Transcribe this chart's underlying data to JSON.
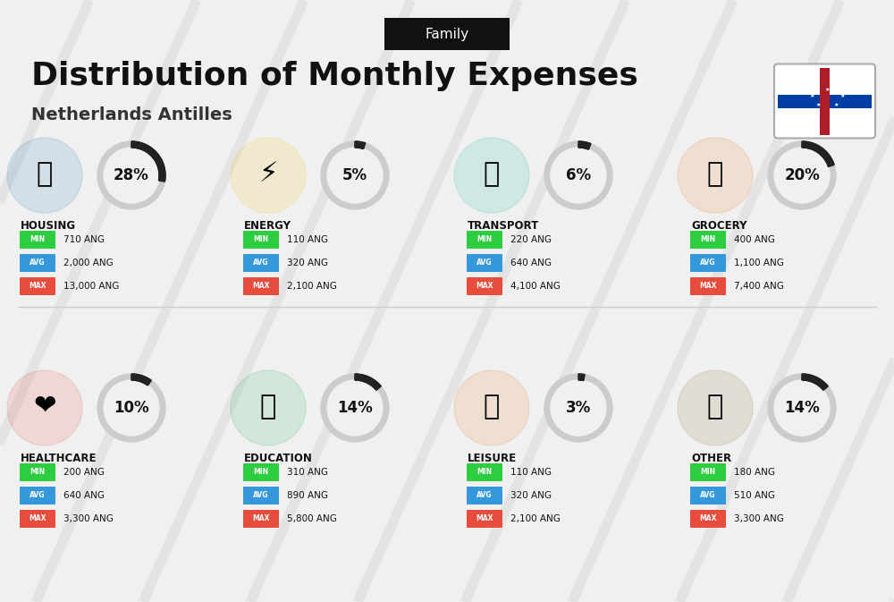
{
  "title": "Distribution of Monthly Expenses",
  "subtitle": "Netherlands Antilles",
  "family_label": "Family",
  "bg_color": "#f0f0f0",
  "categories": [
    {
      "name": "HOUSING",
      "percent": 28,
      "min": "710 ANG",
      "avg": "2,000 ANG",
      "max": "13,000 ANG",
      "row": 0,
      "col": 0,
      "icon_type": "housing"
    },
    {
      "name": "ENERGY",
      "percent": 5,
      "min": "110 ANG",
      "avg": "320 ANG",
      "max": "2,100 ANG",
      "row": 0,
      "col": 1,
      "icon_type": "energy"
    },
    {
      "name": "TRANSPORT",
      "percent": 6,
      "min": "220 ANG",
      "avg": "640 ANG",
      "max": "4,100 ANG",
      "row": 0,
      "col": 2,
      "icon_type": "transport"
    },
    {
      "name": "GROCERY",
      "percent": 20,
      "min": "400 ANG",
      "avg": "1,100 ANG",
      "max": "7,400 ANG",
      "row": 0,
      "col": 3,
      "icon_type": "grocery"
    },
    {
      "name": "HEALTHCARE",
      "percent": 10,
      "min": "200 ANG",
      "avg": "640 ANG",
      "max": "3,300 ANG",
      "row": 1,
      "col": 0,
      "icon_type": "healthcare"
    },
    {
      "name": "EDUCATION",
      "percent": 14,
      "min": "310 ANG",
      "avg": "890 ANG",
      "max": "5,800 ANG",
      "row": 1,
      "col": 1,
      "icon_type": "education"
    },
    {
      "name": "LEISURE",
      "percent": 3,
      "min": "110 ANG",
      "avg": "320 ANG",
      "max": "2,100 ANG",
      "row": 1,
      "col": 2,
      "icon_type": "leisure"
    },
    {
      "name": "OTHER",
      "percent": 14,
      "min": "180 ANG",
      "avg": "510 ANG",
      "max": "3,300 ANG",
      "row": 1,
      "col": 3,
      "icon_type": "other"
    }
  ],
  "min_color": "#2ecc40",
  "avg_color": "#3498db",
  "max_color": "#e74c3c",
  "arc_color_dark": "#222222",
  "arc_color_light": "#cccccc",
  "text_color": "#111111"
}
